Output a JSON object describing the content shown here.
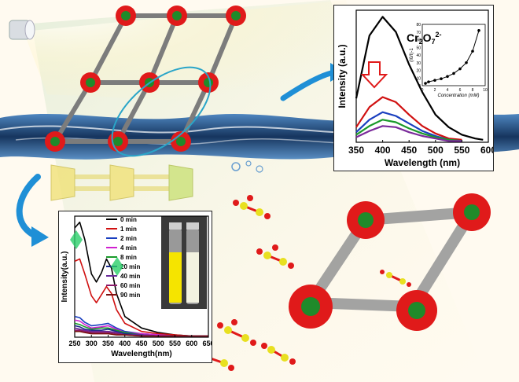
{
  "chart_data": [
    {
      "type": "line",
      "xlabel": "Wavelength (nm)",
      "ylabel": "Intensity (a.u.)",
      "xlim": [
        350,
        600
      ],
      "x_ticks": [
        "350",
        "400",
        "450",
        "500",
        "550",
        "600"
      ],
      "annotation": "Cr2O7 2-",
      "series": [
        {
          "color": "#000000",
          "x": [
            350,
            375,
            400,
            425,
            450,
            475,
            500,
            525,
            550,
            575,
            590
          ],
          "y": [
            0.35,
            0.85,
            1.0,
            0.88,
            0.62,
            0.4,
            0.22,
            0.12,
            0.06,
            0.03,
            0.02
          ]
        },
        {
          "color": "#d01010",
          "x": [
            350,
            375,
            400,
            425,
            450,
            475,
            500,
            525,
            550
          ],
          "y": [
            0.12,
            0.28,
            0.36,
            0.32,
            0.22,
            0.13,
            0.07,
            0.03,
            0.02
          ]
        },
        {
          "color": "#1a3fbf",
          "x": [
            350,
            375,
            400,
            425,
            450,
            475,
            500,
            525,
            550
          ],
          "y": [
            0.08,
            0.18,
            0.24,
            0.21,
            0.15,
            0.09,
            0.05,
            0.02,
            0.01
          ]
        },
        {
          "color": "#1a9a2a",
          "x": [
            350,
            375,
            400,
            425,
            450,
            475,
            500,
            525,
            550
          ],
          "y": [
            0.06,
            0.13,
            0.18,
            0.16,
            0.11,
            0.07,
            0.04,
            0.02,
            0.01
          ]
        },
        {
          "color": "#7a2a9a",
          "x": [
            350,
            375,
            400,
            425,
            450,
            475,
            500,
            525,
            550
          ],
          "y": [
            0.04,
            0.09,
            0.13,
            0.12,
            0.08,
            0.05,
            0.03,
            0.01,
            0.01
          ]
        }
      ]
    },
    {
      "type": "scatter",
      "xlabel": "Concentration (mM)",
      "ylabel": "(I0/I)-1",
      "xlim": [
        0,
        10
      ],
      "ylim": [
        0,
        80
      ],
      "x_ticks": [
        "0",
        "2",
        "4",
        "6",
        "8",
        "10"
      ],
      "y_ticks": [
        "0",
        "10",
        "20",
        "30",
        "40",
        "50",
        "60",
        "70",
        "80"
      ],
      "series": [
        {
          "x": [
            0.5,
            1,
            2,
            3,
            4,
            5,
            6,
            7,
            8,
            9
          ],
          "y": [
            3,
            5,
            7,
            9,
            12,
            16,
            22,
            30,
            45,
            72
          ]
        }
      ]
    },
    {
      "type": "line",
      "xlabel": "Wavelength(nm)",
      "ylabel": "Intensity(a.u.)",
      "xlim": [
        250,
        650
      ],
      "x_ticks": [
        "250",
        "300",
        "350",
        "400",
        "450",
        "500",
        "550",
        "600",
        "650"
      ],
      "series": [
        {
          "name": "0 min",
          "color": "#000000",
          "x": [
            250,
            265,
            280,
            300,
            315,
            330,
            345,
            360,
            375,
            400,
            450,
            500,
            550,
            600,
            650
          ],
          "y": [
            0.95,
            1.0,
            0.85,
            0.55,
            0.48,
            0.56,
            0.68,
            0.6,
            0.38,
            0.18,
            0.08,
            0.04,
            0.02,
            0.01,
            0.01
          ]
        },
        {
          "name": "1 min",
          "color": "#d01010",
          "x": [
            250,
            265,
            280,
            300,
            315,
            330,
            345,
            360,
            375,
            400,
            450,
            500,
            550,
            600,
            650
          ],
          "y": [
            0.66,
            0.68,
            0.55,
            0.36,
            0.3,
            0.37,
            0.44,
            0.38,
            0.24,
            0.12,
            0.05,
            0.03,
            0.02,
            0.01,
            0.01
          ]
        },
        {
          "name": "2 min",
          "color": "#1a3fbf",
          "x": [
            250,
            265,
            280,
            300,
            330,
            350,
            375,
            400,
            450,
            500,
            550,
            650
          ],
          "y": [
            0.18,
            0.17,
            0.13,
            0.1,
            0.11,
            0.12,
            0.08,
            0.05,
            0.03,
            0.02,
            0.01,
            0.01
          ]
        },
        {
          "name": "4 min",
          "color": "#d020d0",
          "x": [
            250,
            265,
            280,
            300,
            330,
            350,
            375,
            400,
            450,
            500,
            550,
            650
          ],
          "y": [
            0.15,
            0.14,
            0.11,
            0.08,
            0.09,
            0.1,
            0.07,
            0.04,
            0.03,
            0.02,
            0.01,
            0.01
          ]
        },
        {
          "name": "8 min",
          "color": "#1a9a2a",
          "x": [
            250,
            265,
            280,
            300,
            330,
            350,
            375,
            400,
            450,
            500,
            550,
            650
          ],
          "y": [
            0.12,
            0.11,
            0.09,
            0.07,
            0.08,
            0.08,
            0.06,
            0.04,
            0.02,
            0.01,
            0.01,
            0.01
          ]
        },
        {
          "name": "20 min",
          "color": "#1a2a8a",
          "x": [
            250,
            265,
            280,
            300,
            330,
            350,
            375,
            400,
            450,
            500,
            550,
            650
          ],
          "y": [
            0.1,
            0.09,
            0.07,
            0.06,
            0.06,
            0.07,
            0.05,
            0.03,
            0.02,
            0.01,
            0.01,
            0.01
          ]
        },
        {
          "name": "40 min",
          "color": "#6a2a9a",
          "x": [
            250,
            265,
            280,
            300,
            330,
            350,
            375,
            400,
            450,
            500,
            550,
            650
          ],
          "y": [
            0.08,
            0.07,
            0.06,
            0.05,
            0.05,
            0.05,
            0.04,
            0.02,
            0.02,
            0.01,
            0.01,
            0.01
          ]
        },
        {
          "name": "60 min",
          "color": "#8a1a6a",
          "x": [
            250,
            265,
            280,
            300,
            330,
            350,
            375,
            400,
            450,
            500,
            550,
            650
          ],
          "y": [
            0.06,
            0.06,
            0.05,
            0.04,
            0.04,
            0.04,
            0.03,
            0.02,
            0.01,
            0.01,
            0.01,
            0.01
          ]
        },
        {
          "name": "90 min",
          "color": "#7a1010",
          "x": [
            250,
            265,
            280,
            300,
            330,
            350,
            375,
            400,
            450,
            500,
            550,
            650
          ],
          "y": [
            0.05,
            0.05,
            0.04,
            0.03,
            0.03,
            0.03,
            0.02,
            0.02,
            0.01,
            0.01,
            0.01,
            0.01
          ]
        }
      ]
    }
  ],
  "colors": {
    "water": "#1e4f86",
    "arrow": "#1f8fd6",
    "framework_metal": "#1f8a2a",
    "framework_oxygen": "#e01a1a",
    "framework_linker": "#8a8a8a",
    "yellow_framework": "#f0e070",
    "solution": "#f5e400"
  },
  "icons": [
    "flashlight-icon",
    "down-arrow-icon",
    "curved-arrow-icon"
  ]
}
